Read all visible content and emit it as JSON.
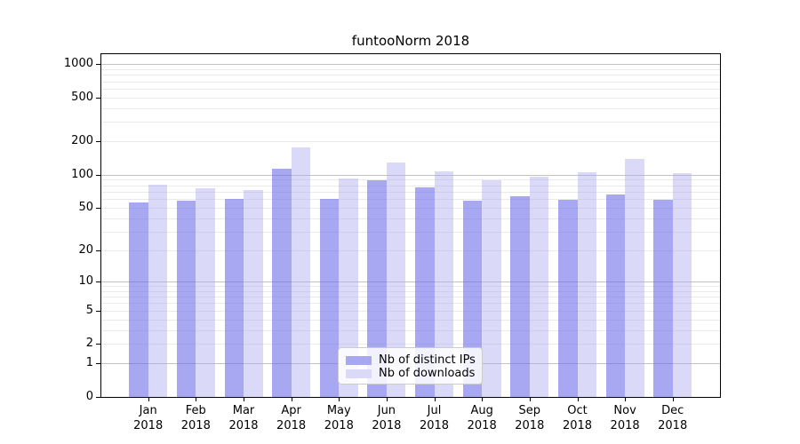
{
  "chart_data": {
    "type": "bar",
    "title": "funtooNorm 2018",
    "categories": [
      "Jan",
      "Feb",
      "Mar",
      "Apr",
      "May",
      "Jun",
      "Jul",
      "Aug",
      "Sep",
      "Oct",
      "Nov",
      "Dec"
    ],
    "x_year": "2018",
    "series": [
      {
        "name": "Nb of distinct IPs",
        "color": "#a8a8f2",
        "fill": "rgba(110,110,233,0.60)",
        "values": [
          56,
          58,
          60,
          113,
          60,
          89,
          77,
          58,
          63,
          59,
          66,
          59
        ]
      },
      {
        "name": "Nb of downloads",
        "color": "#dadaf8",
        "fill": "rgba(173,173,240,0.45)",
        "values": [
          81,
          75,
          72,
          176,
          92,
          128,
          107,
          89,
          95,
          105,
          140,
          103
        ]
      }
    ],
    "y_scale": "log1p",
    "y_ticks": [
      0,
      1,
      2,
      5,
      10,
      20,
      50,
      100,
      200,
      500,
      1000
    ],
    "ylim": [
      0,
      1230
    ],
    "xlabel": "",
    "ylabel": "",
    "grid": true,
    "legend_position": "lower-center"
  }
}
